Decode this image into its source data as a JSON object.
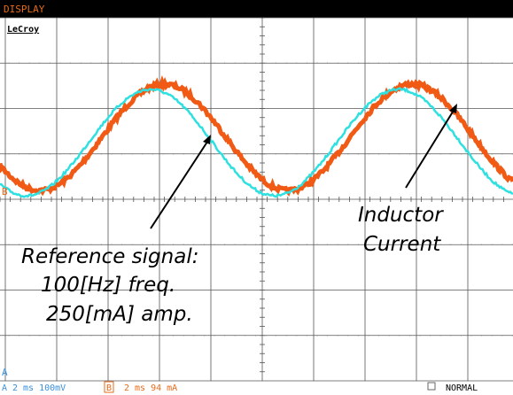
{
  "header": {
    "menu": "DISPLAY",
    "brand": "LeCroy"
  },
  "channels": {
    "ref_marker": "B",
    "trace_marker": "A"
  },
  "annotations": {
    "reference": [
      "Reference signal:",
      "100[Hz] freq.",
      "250[mA] amp."
    ],
    "inductor": [
      "Inductor",
      "Current"
    ]
  },
  "status": {
    "channel_a": "A",
    "a_settings": "2 ms 100mV",
    "channel_b": "B",
    "b_settings": "2 ms 94 mA",
    "mode": "NORMAL"
  }
}
